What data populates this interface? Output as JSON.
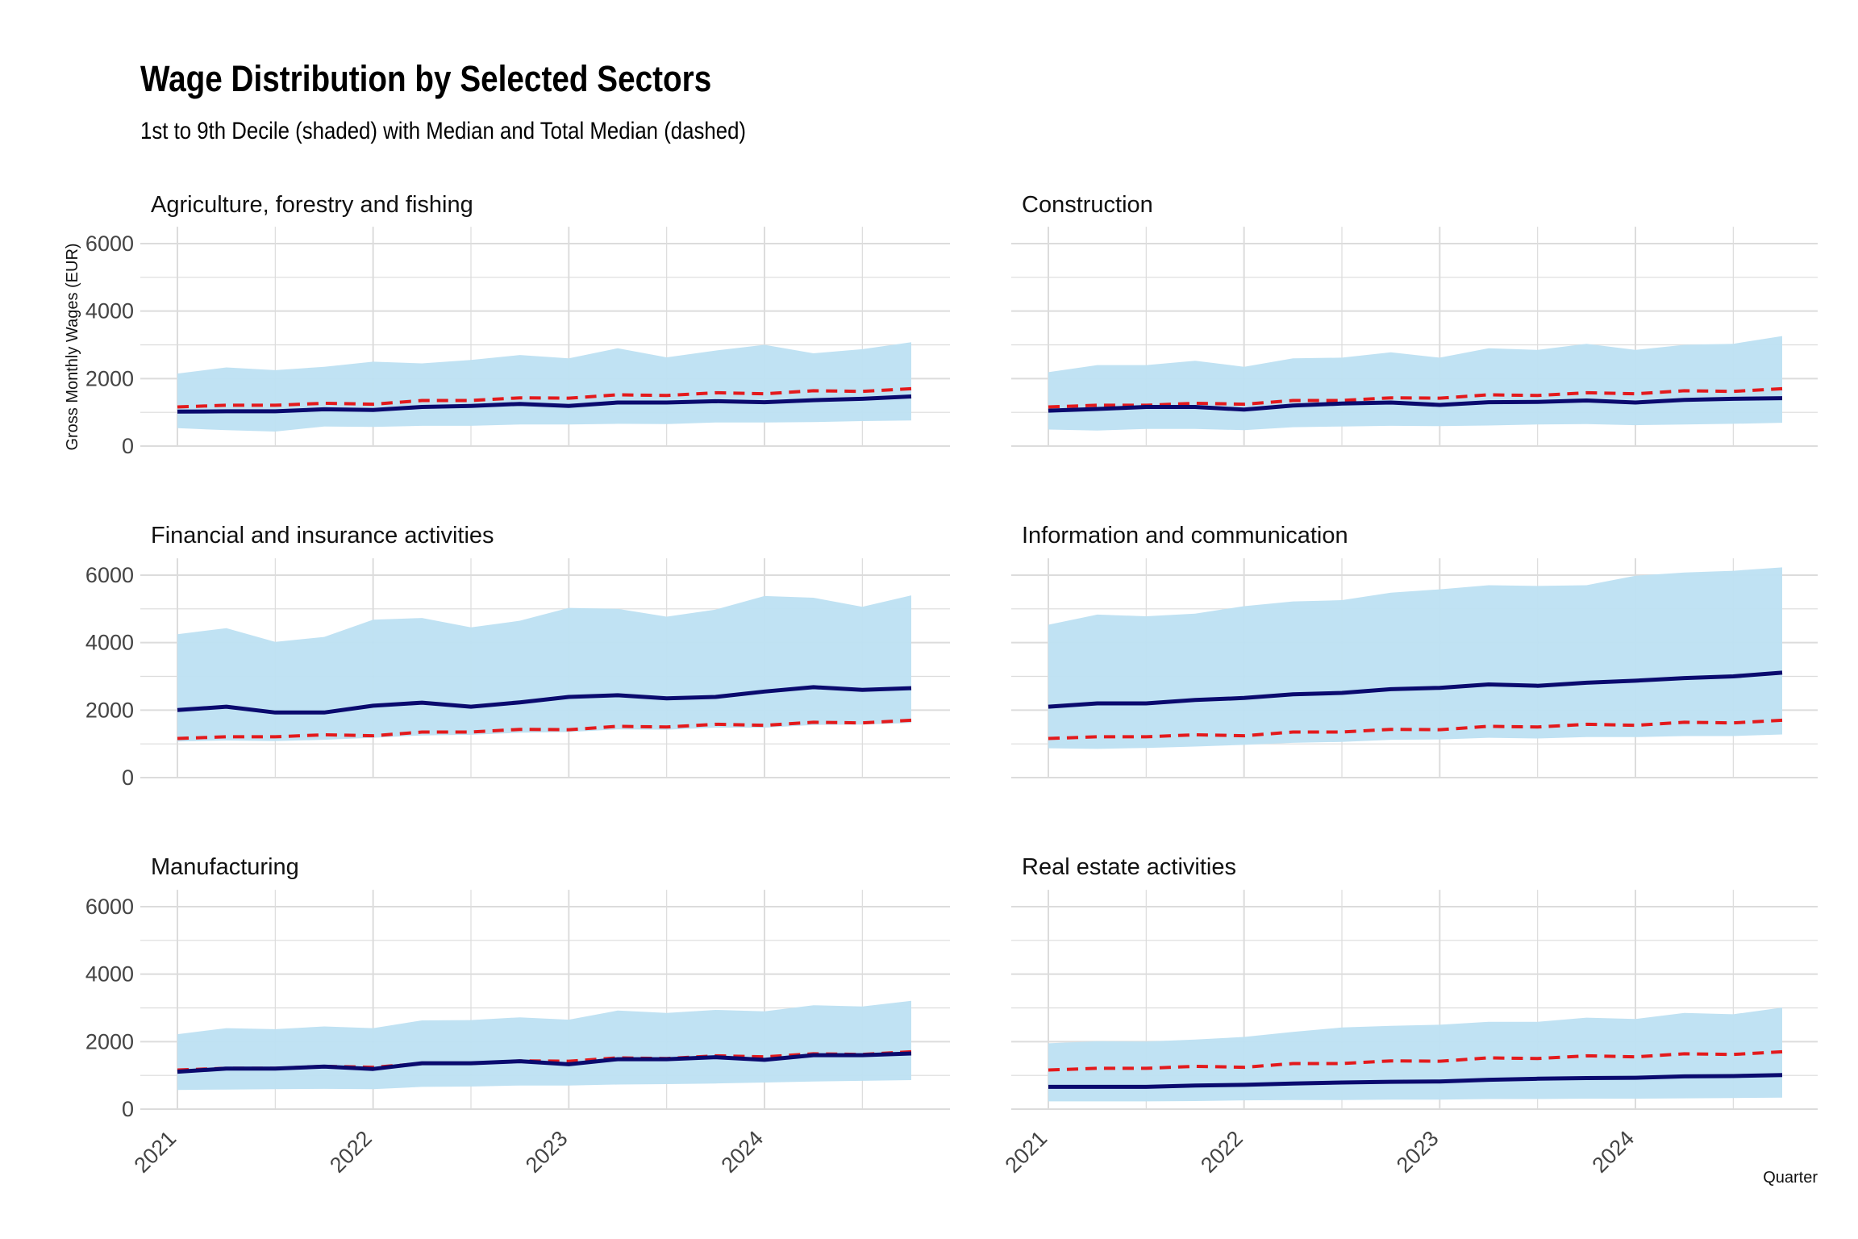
{
  "chart_data": {
    "type": "area",
    "title": "Wage Distribution by Selected Sectors",
    "subtitle": "1st to 9th Decile (shaded) with Median and Total Median (dashed)",
    "ylabel": "Gross Monthly Wages (EUR)",
    "xlabel": "Quarter",
    "ylim": [
      0,
      6500
    ],
    "yticks": [
      0,
      2000,
      4000,
      6000
    ],
    "x_tick_labels": [
      "2021",
      "2022",
      "2023",
      "2024"
    ],
    "x": [
      "2021-Q1",
      "2021-Q2",
      "2021-Q3",
      "2021-Q4",
      "2022-Q1",
      "2022-Q2",
      "2022-Q3",
      "2022-Q4",
      "2023-Q1",
      "2023-Q2",
      "2023-Q3",
      "2023-Q4",
      "2024-Q1",
      "2024-Q2",
      "2024-Q3",
      "2024-Q4"
    ],
    "grid": true,
    "colors": {
      "band": "#bde0f2",
      "median": "#0a0a6e",
      "total_median": "#e31a1c",
      "grid": "#dcdcdc"
    },
    "total_median": [
      1160,
      1210,
      1210,
      1270,
      1240,
      1350,
      1350,
      1430,
      1420,
      1520,
      1500,
      1580,
      1550,
      1640,
      1620,
      1700
    ],
    "panels": [
      {
        "name": "Agriculture, forestry and fishing",
        "p10": [
          530,
          470,
          430,
          580,
          570,
          600,
          600,
          640,
          640,
          660,
          650,
          700,
          700,
          710,
          740,
          760
        ],
        "p90": [
          2150,
          2330,
          2250,
          2350,
          2500,
          2450,
          2550,
          2700,
          2600,
          2900,
          2630,
          2830,
          3000,
          2750,
          2870,
          3080
        ],
        "median": [
          1020,
          1030,
          1030,
          1090,
          1070,
          1160,
          1190,
          1250,
          1190,
          1290,
          1290,
          1330,
          1300,
          1360,
          1400,
          1470
        ]
      },
      {
        "name": "Construction",
        "p10": [
          490,
          460,
          510,
          510,
          470,
          560,
          580,
          600,
          590,
          610,
          640,
          650,
          620,
          640,
          660,
          690
        ],
        "p90": [
          2190,
          2400,
          2400,
          2530,
          2350,
          2600,
          2620,
          2780,
          2620,
          2900,
          2850,
          3030,
          2850,
          3000,
          3030,
          3260
        ],
        "median": [
          1050,
          1100,
          1160,
          1160,
          1080,
          1200,
          1260,
          1290,
          1220,
          1300,
          1310,
          1350,
          1290,
          1370,
          1400,
          1420
        ]
      },
      {
        "name": "Financial and insurance activities",
        "p10": [
          1070,
          1100,
          1080,
          1120,
          1180,
          1250,
          1270,
          1330,
          1350,
          1430,
          1420,
          1480,
          1480,
          1560,
          1570,
          1620
        ],
        "p90": [
          4250,
          4430,
          4020,
          4170,
          4680,
          4730,
          4450,
          4650,
          5030,
          5000,
          4770,
          4980,
          5380,
          5330,
          5060,
          5400
        ],
        "median": [
          2000,
          2100,
          1930,
          1930,
          2130,
          2220,
          2100,
          2230,
          2390,
          2440,
          2350,
          2390,
          2550,
          2680,
          2600,
          2650
        ]
      },
      {
        "name": "Information and communication",
        "p10": [
          870,
          850,
          880,
          920,
          970,
          1030,
          1060,
          1120,
          1130,
          1180,
          1160,
          1200,
          1200,
          1230,
          1230,
          1280
        ],
        "p90": [
          4530,
          4830,
          4780,
          4860,
          5080,
          5220,
          5260,
          5480,
          5580,
          5700,
          5680,
          5700,
          5980,
          6080,
          6130,
          6230
        ],
        "median": [
          2100,
          2200,
          2200,
          2300,
          2360,
          2470,
          2510,
          2620,
          2660,
          2760,
          2720,
          2810,
          2870,
          2950,
          3000,
          3110
        ]
      },
      {
        "name": "Manufacturing",
        "p10": [
          570,
          580,
          590,
          600,
          590,
          660,
          670,
          700,
          700,
          730,
          740,
          760,
          790,
          820,
          840,
          860
        ],
        "p90": [
          2220,
          2400,
          2370,
          2450,
          2400,
          2630,
          2640,
          2720,
          2650,
          2920,
          2850,
          2940,
          2900,
          3080,
          3040,
          3210
        ],
        "median": [
          1110,
          1200,
          1200,
          1260,
          1190,
          1360,
          1360,
          1420,
          1330,
          1480,
          1480,
          1540,
          1460,
          1600,
          1600,
          1650
        ]
      },
      {
        "name": "Real estate activities",
        "p10": [
          230,
          230,
          230,
          240,
          260,
          270,
          270,
          280,
          280,
          300,
          300,
          310,
          310,
          320,
          330,
          340
        ],
        "p90": [
          1950,
          2010,
          2000,
          2060,
          2140,
          2290,
          2420,
          2470,
          2500,
          2590,
          2590,
          2710,
          2670,
          2850,
          2810,
          3010
        ],
        "median": [
          660,
          660,
          660,
          700,
          720,
          760,
          790,
          810,
          820,
          870,
          900,
          920,
          930,
          970,
          980,
          1010
        ]
      }
    ]
  }
}
